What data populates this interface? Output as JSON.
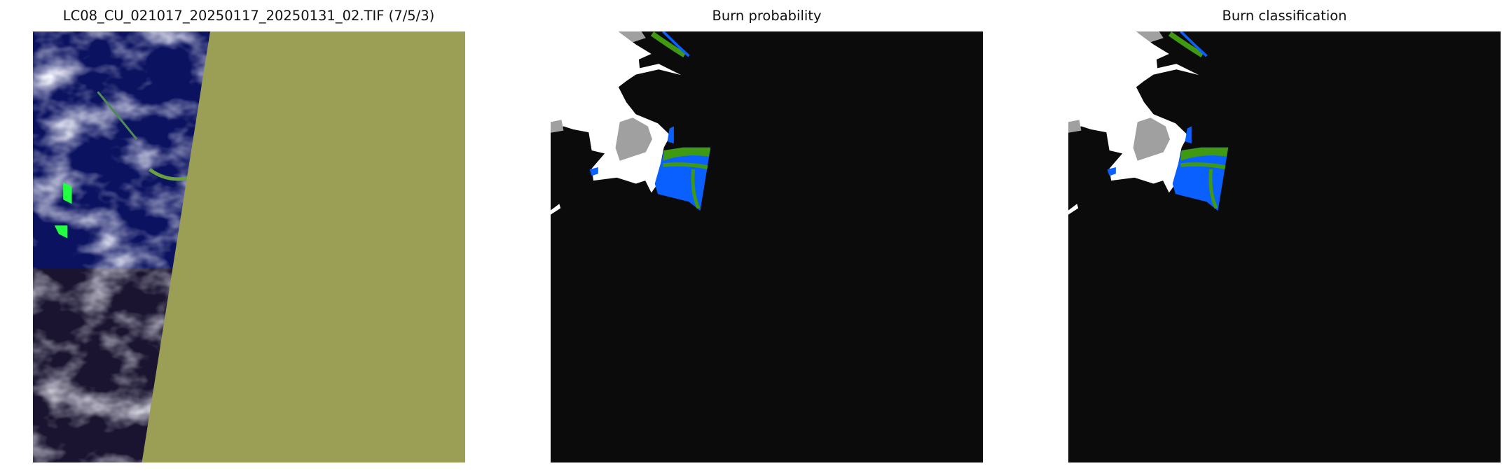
{
  "panels": [
    {
      "title": "LC08_CU_021017_20250117_20250131_02.TIF (7/5/3)",
      "kind": "false-color composite"
    },
    {
      "title": "Burn probability",
      "kind": "classified map"
    },
    {
      "title": "Burn classification",
      "kind": "classified map"
    }
  ],
  "colors": {
    "nodata_fill": "#9a9f55",
    "background": "#0b0b0b",
    "cloud": "#ffffff",
    "low": "#a0a0a0",
    "burned": "#0a5fff",
    "unburned_veg": "#3f9a12",
    "water": "#0b1260",
    "cloud_rgb": "#e8ecff"
  }
}
